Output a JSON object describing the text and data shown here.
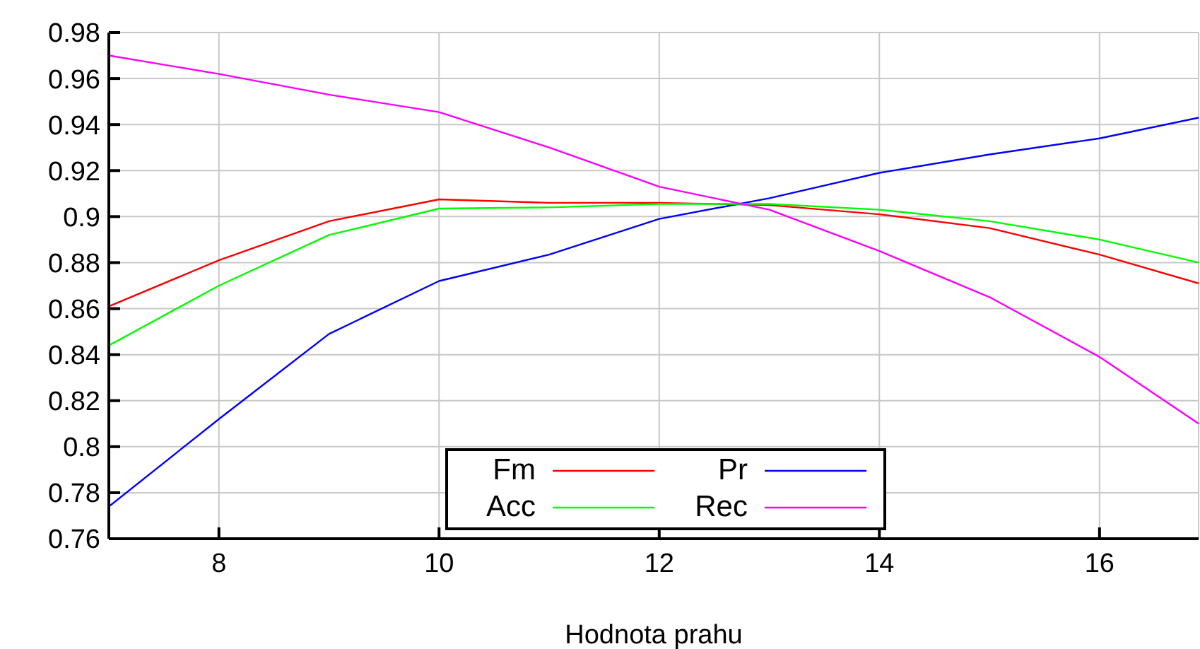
{
  "chart_data": {
    "type": "line",
    "xlabel": "Hodnota prahu",
    "x": [
      7,
      8,
      9,
      10,
      11,
      12,
      13,
      14,
      15,
      16,
      16.9
    ],
    "series": [
      {
        "name": "Fm",
        "color": "#ff0000",
        "values": [
          0.861,
          0.881,
          0.898,
          0.9075,
          0.906,
          0.906,
          0.905,
          0.901,
          0.895,
          0.8835,
          0.871
        ]
      },
      {
        "name": "Pr",
        "color": "#0000ff",
        "values": [
          0.774,
          0.812,
          0.849,
          0.872,
          0.8835,
          0.899,
          0.908,
          0.919,
          0.927,
          0.934,
          0.943
        ]
      },
      {
        "name": "Acc",
        "color": "#00ff00",
        "values": [
          0.844,
          0.87,
          0.892,
          0.9035,
          0.904,
          0.9055,
          0.9055,
          0.903,
          0.898,
          0.89,
          0.88
        ]
      },
      {
        "name": "Rec",
        "color": "#ff00ff",
        "values": [
          0.97,
          0.962,
          0.953,
          0.9454,
          0.93,
          0.913,
          0.903,
          0.885,
          0.865,
          0.839,
          0.81
        ]
      }
    ],
    "xlim": [
      7,
      16.9
    ],
    "xticks": [
      8,
      10,
      12,
      14,
      16
    ],
    "ylim": [
      0.76,
      0.98
    ],
    "yticks": [
      0.76,
      0.78,
      0.8,
      0.82,
      0.84,
      0.86,
      0.88,
      0.9,
      0.92,
      0.94,
      0.96,
      0.98
    ],
    "grid": true,
    "legend": "bottom",
    "marker": "none",
    "line_style": "solid"
  }
}
